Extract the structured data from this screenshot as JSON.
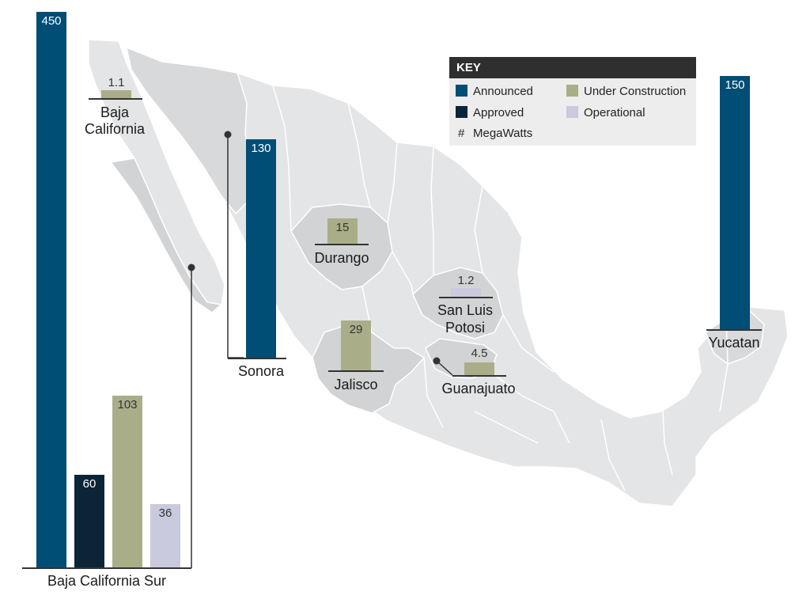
{
  "legend": {
    "title": "KEY",
    "announced": "Announced",
    "under_construction": "Under Construction",
    "approved": "Approved",
    "operational": "Operational",
    "unit_symbol": "#",
    "unit": "MegaWatts"
  },
  "colors": {
    "announced": "#004d75",
    "approved": "#0b2537",
    "under_construction": "#a9ae89",
    "operational": "#c9cade",
    "map_land": "#e4e5e6",
    "map_highlight": "#d2d3d5"
  },
  "states": {
    "baja_california": {
      "name_1": "Baja",
      "name_2": "California",
      "under_construction": "1.1"
    },
    "bcs": {
      "name": "Baja California Sur",
      "announced": "450",
      "approved": "60",
      "under_construction": "103",
      "operational": "36"
    },
    "sonora": {
      "name": "Sonora",
      "announced": "130"
    },
    "durango": {
      "name": "Durango",
      "under_construction": "15"
    },
    "slp": {
      "name_1": "San Luis",
      "name_2": "Potosi",
      "operational": "1.2"
    },
    "jalisco": {
      "name": "Jalisco",
      "under_construction": "29"
    },
    "guanajuato": {
      "name": "Guanajuato",
      "under_construction": "4.5"
    },
    "yucatan": {
      "name": "Yucatan",
      "announced": "150"
    }
  },
  "chart_data": {
    "type": "bar",
    "unit": "MegaWatts",
    "series": [
      {
        "name": "Announced",
        "values": [
          {
            "state": "Baja California Sur",
            "mw": 450
          },
          {
            "state": "Sonora",
            "mw": 130
          },
          {
            "state": "Yucatan",
            "mw": 150
          }
        ]
      },
      {
        "name": "Approved",
        "values": [
          {
            "state": "Baja California Sur",
            "mw": 60
          }
        ]
      },
      {
        "name": "Under Construction",
        "values": [
          {
            "state": "Baja California",
            "mw": 1.1
          },
          {
            "state": "Baja California Sur",
            "mw": 103
          },
          {
            "state": "Durango",
            "mw": 15
          },
          {
            "state": "Jalisco",
            "mw": 29
          },
          {
            "state": "Guanajuato",
            "mw": 4.5
          }
        ]
      },
      {
        "name": "Operational",
        "values": [
          {
            "state": "Baja California Sur",
            "mw": 36
          },
          {
            "state": "San Luis Potosi",
            "mw": 1.2
          }
        ]
      }
    ]
  }
}
